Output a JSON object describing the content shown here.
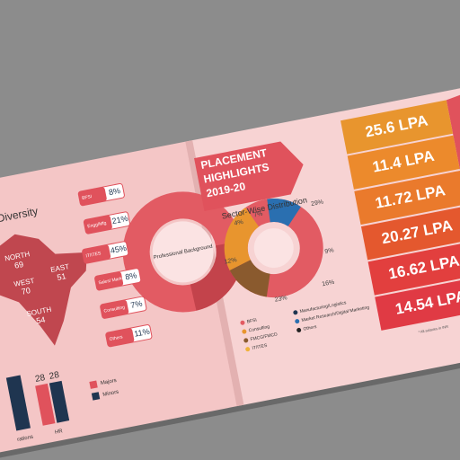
{
  "left_page": {
    "map_title": "-Wise Diversity",
    "regions": [
      {
        "name": "NORTH",
        "value": "69"
      },
      {
        "name": "WEST",
        "value": "70"
      },
      {
        "name": "EAST",
        "value": "51"
      },
      {
        "name": "SOUTH",
        "value": "54"
      }
    ],
    "bar_values": [
      "28",
      "28"
    ],
    "bar_labels": [
      "rations",
      "HR"
    ],
    "bar_legend": [
      "Majors",
      "Minors"
    ],
    "background_title": "Professional Background",
    "background_items": [
      {
        "label": "BFSI",
        "value": "8%"
      },
      {
        "label": "Engg/Mfg",
        "value": "21%"
      },
      {
        "label": "IT/ITES",
        "value": "45%"
      },
      {
        "label": "Sales/ Marketing",
        "value": "8%"
      },
      {
        "label": "Consulting",
        "value": "7%"
      },
      {
        "label": "Others",
        "value": "11%"
      }
    ]
  },
  "right_page": {
    "banner": [
      "PLACEMENT",
      "HIGHLIGHTS",
      "2019-20"
    ],
    "sector_title": "Sector-Wise Distribution",
    "sector_labels": [
      "29%",
      "9%",
      "16%",
      "23%",
      "12%",
      "4%",
      "7%"
    ],
    "legend": [
      "BFSI",
      "Consulting",
      "FMCG/FMCD",
      "IT/ITES",
      "Manufacturing/Logistics",
      "Market Research/Digital Marketing",
      "Others"
    ],
    "salaries": [
      "25.6 LPA",
      "11.4 LPA",
      "11.72 LPA",
      "20.27 LPA",
      "16.62 LPA",
      "14.54 LPA"
    ],
    "footnote": "* All salaries in INR"
  }
}
